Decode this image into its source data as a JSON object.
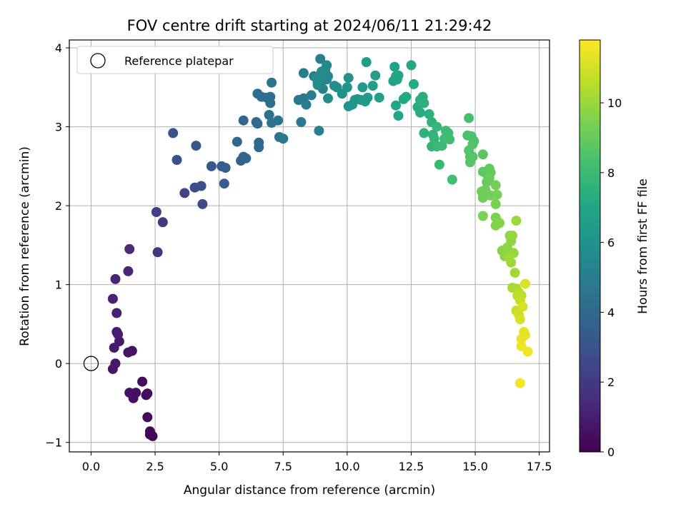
{
  "chart_data": {
    "type": "scatter",
    "title": "FOV centre drift starting at 2024/06/11 21:29:42",
    "xlabel": "Angular distance from reference (arcmin)",
    "ylabel": "Rotation from reference (arcmin)",
    "xlim": [
      -0.85,
      17.9
    ],
    "ylim": [
      -1.12,
      4.1
    ],
    "xticks": [
      0.0,
      2.5,
      5.0,
      7.5,
      10.0,
      12.5,
      15.0,
      17.5
    ],
    "xtick_labels": [
      "0.0",
      "2.5",
      "5.0",
      "7.5",
      "10.0",
      "12.5",
      "15.0",
      "17.5"
    ],
    "yticks": [
      -1,
      0,
      1,
      2,
      3,
      4
    ],
    "ytick_labels": [
      "−1",
      "0",
      "1",
      "2",
      "3",
      "4"
    ],
    "grid": true,
    "legend": {
      "placement": "upper-left",
      "entries": [
        "Reference platepar"
      ]
    },
    "reference_point": {
      "x": 0.0,
      "y": 0.0
    },
    "colorbar": {
      "label": "Hours from first FF file",
      "colormap": "viridis",
      "range": [
        0,
        11.8
      ],
      "ticks": [
        0,
        2,
        4,
        6,
        8,
        10
      ],
      "tick_labels": [
        "0",
        "2",
        "4",
        "6",
        "8",
        "10"
      ]
    },
    "series": [
      {
        "color_by": "hours",
        "points": [
          [
            2.4,
            -0.92,
            0.1
          ],
          [
            2.3,
            -0.9,
            0.15
          ],
          [
            2.3,
            -0.86,
            0.2
          ],
          [
            2.2,
            -0.68,
            0.25
          ],
          [
            2.0,
            -0.23,
            0.3
          ],
          [
            2.15,
            -0.4,
            0.35
          ],
          [
            2.2,
            -0.38,
            0.4
          ],
          [
            1.65,
            -0.44,
            0.45
          ],
          [
            1.75,
            -0.37,
            0.5
          ],
          [
            1.5,
            -0.37,
            0.55
          ],
          [
            1.6,
            0.16,
            0.6
          ],
          [
            1.45,
            0.14,
            0.65
          ],
          [
            0.85,
            -0.07,
            0.7
          ],
          [
            0.95,
            0.0,
            0.75
          ],
          [
            0.9,
            0.2,
            0.8
          ],
          [
            1.1,
            0.28,
            0.85
          ],
          [
            1.0,
            0.4,
            0.9
          ],
          [
            1.05,
            0.37,
            0.95
          ],
          [
            1.0,
            0.64,
            1.0
          ],
          [
            0.85,
            0.82,
            1.1
          ],
          [
            0.95,
            1.07,
            1.2
          ],
          [
            1.45,
            1.17,
            1.3
          ],
          [
            1.5,
            1.45,
            1.4
          ],
          [
            2.6,
            1.41,
            1.8
          ],
          [
            2.8,
            1.79,
            2.0
          ],
          [
            2.55,
            1.92,
            2.2
          ],
          [
            3.65,
            2.16,
            2.4
          ],
          [
            4.35,
            2.02,
            2.6
          ],
          [
            4.05,
            2.23,
            2.7
          ],
          [
            4.3,
            2.25,
            2.8
          ],
          [
            3.35,
            2.58,
            2.9
          ],
          [
            3.2,
            2.92,
            3.0
          ],
          [
            4.1,
            2.76,
            3.1
          ],
          [
            4.7,
            2.5,
            3.3
          ],
          [
            5.1,
            2.5,
            3.4
          ],
          [
            5.25,
            2.48,
            3.5
          ],
          [
            5.2,
            2.28,
            3.6
          ],
          [
            5.85,
            2.57,
            3.7
          ],
          [
            5.95,
            2.62,
            3.75
          ],
          [
            6.05,
            2.6,
            3.8
          ],
          [
            5.7,
            2.81,
            3.85
          ],
          [
            5.95,
            3.08,
            3.9
          ],
          [
            6.55,
            2.74,
            3.95
          ],
          [
            6.55,
            2.8,
            4.0
          ],
          [
            6.5,
            3.04,
            4.05
          ],
          [
            6.45,
            3.06,
            4.1
          ],
          [
            6.5,
            3.42,
            4.15
          ],
          [
            6.65,
            3.38,
            4.2
          ],
          [
            6.85,
            3.37,
            4.25
          ],
          [
            7.0,
            3.38,
            4.3
          ],
          [
            7.0,
            3.3,
            4.35
          ],
          [
            6.95,
            3.15,
            4.4
          ],
          [
            7.05,
            3.05,
            4.45
          ],
          [
            7.05,
            3.56,
            4.5
          ],
          [
            7.3,
            3.08,
            4.55
          ],
          [
            7.35,
            2.87,
            4.6
          ],
          [
            7.5,
            2.85,
            4.65
          ],
          [
            8.1,
            3.34,
            4.7
          ],
          [
            8.2,
            3.06,
            4.75
          ],
          [
            8.3,
            3.36,
            4.8
          ],
          [
            8.4,
            3.28,
            4.85
          ],
          [
            8.3,
            3.68,
            4.9
          ],
          [
            8.6,
            3.4,
            4.95
          ],
          [
            8.7,
            3.64,
            5.0
          ],
          [
            8.85,
            3.56,
            5.05
          ],
          [
            8.9,
            2.95,
            5.1
          ],
          [
            8.95,
            3.86,
            5.15
          ],
          [
            9.05,
            3.48,
            5.2
          ],
          [
            9.1,
            3.6,
            5.25
          ],
          [
            9.15,
            3.73,
            5.3
          ],
          [
            9.25,
            3.64,
            5.35
          ],
          [
            9.2,
            3.6,
            5.4
          ],
          [
            9.15,
            3.68,
            5.45
          ],
          [
            9.2,
            3.78,
            5.5
          ],
          [
            9.0,
            3.7,
            5.55
          ],
          [
            8.9,
            3.6,
            5.6
          ],
          [
            8.8,
            3.62,
            5.65
          ],
          [
            8.85,
            3.53,
            5.7
          ],
          [
            9.25,
            3.36,
            5.75
          ],
          [
            9.5,
            3.52,
            5.8
          ],
          [
            9.6,
            3.5,
            5.85
          ],
          [
            9.8,
            3.42,
            5.9
          ],
          [
            10.0,
            3.5,
            5.95
          ],
          [
            10.05,
            3.62,
            6.0
          ],
          [
            10.05,
            3.26,
            6.05
          ],
          [
            10.2,
            3.28,
            6.1
          ],
          [
            10.3,
            3.34,
            6.15
          ],
          [
            10.4,
            3.35,
            6.2
          ],
          [
            10.55,
            3.34,
            6.25
          ],
          [
            10.6,
            3.5,
            6.3
          ],
          [
            10.7,
            3.32,
            6.35
          ],
          [
            10.8,
            3.37,
            6.4
          ],
          [
            10.75,
            3.82,
            6.45
          ],
          [
            11.0,
            3.52,
            6.5
          ],
          [
            11.1,
            3.65,
            6.55
          ],
          [
            11.25,
            3.37,
            6.6
          ],
          [
            11.8,
            3.58,
            6.7
          ],
          [
            11.85,
            3.76,
            6.75
          ],
          [
            11.9,
            3.64,
            6.8
          ],
          [
            11.95,
            3.6,
            6.85
          ],
          [
            12.0,
            3.65,
            6.9
          ],
          [
            11.9,
            3.27,
            6.95
          ],
          [
            12.0,
            3.14,
            7.0
          ],
          [
            12.2,
            3.35,
            7.05
          ],
          [
            12.3,
            3.38,
            7.1
          ],
          [
            12.5,
            3.78,
            7.15
          ],
          [
            12.6,
            3.54,
            7.2
          ],
          [
            12.75,
            3.25,
            7.25
          ],
          [
            12.85,
            3.18,
            7.3
          ],
          [
            12.85,
            3.34,
            7.35
          ],
          [
            12.95,
            3.38,
            7.4
          ],
          [
            13.0,
            3.3,
            7.45
          ],
          [
            13.2,
            3.16,
            7.5
          ],
          [
            13.0,
            2.92,
            7.55
          ],
          [
            13.3,
            3.06,
            7.6
          ],
          [
            13.35,
            2.9,
            7.65
          ],
          [
            13.3,
            2.75,
            7.7
          ],
          [
            13.4,
            2.85,
            7.75
          ],
          [
            13.5,
            3.0,
            7.8
          ],
          [
            13.5,
            2.75,
            7.85
          ],
          [
            13.6,
            2.52,
            7.9
          ],
          [
            13.7,
            2.76,
            7.95
          ],
          [
            13.8,
            2.85,
            8.0
          ],
          [
            13.85,
            2.95,
            8.05
          ],
          [
            13.95,
            2.92,
            8.1
          ],
          [
            14.0,
            2.84,
            8.15
          ],
          [
            14.1,
            2.33,
            8.2
          ],
          [
            14.75,
            3.11,
            8.3
          ],
          [
            14.7,
            2.89,
            8.35
          ],
          [
            14.85,
            2.88,
            8.4
          ],
          [
            14.95,
            2.82,
            8.45
          ],
          [
            14.9,
            2.78,
            8.5
          ],
          [
            14.75,
            2.7,
            8.55
          ],
          [
            14.8,
            2.62,
            8.6
          ],
          [
            14.9,
            2.62,
            8.65
          ],
          [
            14.8,
            2.55,
            8.7
          ],
          [
            15.3,
            2.65,
            8.75
          ],
          [
            15.3,
            2.43,
            8.8
          ],
          [
            15.45,
            2.4,
            8.85
          ],
          [
            15.55,
            2.47,
            8.9
          ],
          [
            15.6,
            2.42,
            8.95
          ],
          [
            15.45,
            2.3,
            9.0
          ],
          [
            15.55,
            2.35,
            9.05
          ],
          [
            15.4,
            2.2,
            9.1
          ],
          [
            15.25,
            2.18,
            9.15
          ],
          [
            15.3,
            2.1,
            9.2
          ],
          [
            15.6,
            2.13,
            9.25
          ],
          [
            15.8,
            2.26,
            9.3
          ],
          [
            15.85,
            2.14,
            9.35
          ],
          [
            15.8,
            2.02,
            9.4
          ],
          [
            15.3,
            1.87,
            9.45
          ],
          [
            15.8,
            1.85,
            9.5
          ],
          [
            15.8,
            1.75,
            9.55
          ],
          [
            15.95,
            1.78,
            9.6
          ],
          [
            16.05,
            1.43,
            9.65
          ],
          [
            16.15,
            1.36,
            9.7
          ],
          [
            16.25,
            1.47,
            9.75
          ],
          [
            16.35,
            1.62,
            9.8
          ],
          [
            16.4,
            1.55,
            9.85
          ],
          [
            16.45,
            1.62,
            9.9
          ],
          [
            16.5,
            1.4,
            9.95
          ],
          [
            16.6,
            1.81,
            10.0
          ],
          [
            16.3,
            1.35,
            10.05
          ],
          [
            16.4,
            1.28,
            10.1
          ],
          [
            16.55,
            1.15,
            10.15
          ],
          [
            16.45,
            0.96,
            10.2
          ],
          [
            16.6,
            0.95,
            10.3
          ],
          [
            16.7,
            0.9,
            10.4
          ],
          [
            16.65,
            0.86,
            10.5
          ],
          [
            16.8,
            0.86,
            10.6
          ],
          [
            16.75,
            0.8,
            10.7
          ],
          [
            16.6,
            0.67,
            10.8
          ],
          [
            16.7,
            0.62,
            10.9
          ],
          [
            16.75,
            0.56,
            11.0
          ],
          [
            16.85,
            0.72,
            11.1
          ],
          [
            16.95,
            1.01,
            11.2
          ],
          [
            16.9,
            0.4,
            11.3
          ],
          [
            16.95,
            0.36,
            11.35
          ],
          [
            16.8,
            0.31,
            11.4
          ],
          [
            16.8,
            0.22,
            11.45
          ],
          [
            17.05,
            0.15,
            11.55
          ],
          [
            16.75,
            -0.25,
            11.6
          ]
        ]
      }
    ]
  }
}
